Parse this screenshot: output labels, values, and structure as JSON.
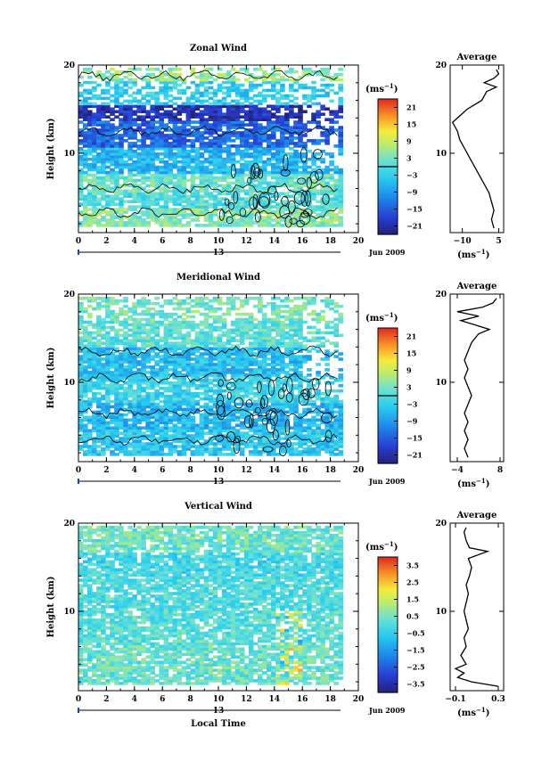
{
  "chart_data": [
    {
      "type": "heatmap",
      "title": "Zonal Wind",
      "xlabel": "",
      "ylabel": "Height (km)",
      "x_ticks": [
        "0",
        "2",
        "4",
        "6",
        "8",
        "10",
        "12",
        "14",
        "16",
        "18",
        "20"
      ],
      "y_ticks": [
        "10",
        "20"
      ],
      "xlim": [
        0,
        20
      ],
      "ylim": [
        1,
        20
      ],
      "date_marker": "13",
      "date_label": "Jun 2009",
      "colorbar": {
        "unit": "(ms",
        "unit_sup": "−1",
        "unit_close": ")",
        "ticks": [
          "21",
          "15",
          "9",
          "3",
          "−3",
          "−9",
          "−15",
          "−21"
        ],
        "range": [
          -24,
          24
        ],
        "zero_line": 0
      },
      "layers": [
        {
          "z0": 1.5,
          "z1": 3.5,
          "value": 4
        },
        {
          "z0": 3.5,
          "z1": 5.5,
          "value": 0
        },
        {
          "z0": 5.5,
          "z1": 7.5,
          "value": 2
        },
        {
          "z0": 7.5,
          "z1": 10.5,
          "value": -6
        },
        {
          "z0": 10.5,
          "z1": 13.5,
          "value": -14
        },
        {
          "z0": 13.5,
          "z1": 15.5,
          "value": -20
        },
        {
          "z0": 15.5,
          "z1": 18,
          "value": -3
        },
        {
          "z0": 18,
          "z1": 19.5,
          "value": 5
        }
      ],
      "average_profile": {
        "title": "Average",
        "x_ticks": [
          "−10",
          "5"
        ],
        "xlim": [
          -15,
          7
        ],
        "xlabel": "(ms",
        "xlabel_sup": "−1",
        "xlabel_close": ")",
        "y_ticks": [
          "10",
          "20"
        ],
        "ylim": [
          1,
          20
        ],
        "points": [
          [
            3,
            1.5
          ],
          [
            2,
            2.5
          ],
          [
            3,
            3.5
          ],
          [
            2,
            4.5
          ],
          [
            1,
            5.5
          ],
          [
            -1,
            6.5
          ],
          [
            -3,
            7.5
          ],
          [
            -5,
            8.5
          ],
          [
            -7,
            9.5
          ],
          [
            -9,
            10.5
          ],
          [
            -11,
            11.5
          ],
          [
            -12,
            12.5
          ],
          [
            -14,
            13.5
          ],
          [
            -12,
            14
          ],
          [
            -8,
            15
          ],
          [
            -2,
            16
          ],
          [
            0,
            17
          ],
          [
            4,
            17.5
          ],
          [
            -1,
            18
          ],
          [
            3,
            18.5
          ],
          [
            5,
            19
          ],
          [
            4,
            19.5
          ]
        ]
      }
    },
    {
      "type": "heatmap",
      "title": "Meridional Wind",
      "xlabel": "",
      "ylabel": "Height (km)",
      "x_ticks": [
        "0",
        "2",
        "4",
        "6",
        "8",
        "10",
        "12",
        "14",
        "16",
        "18",
        "20"
      ],
      "y_ticks": [
        "10",
        "20"
      ],
      "xlim": [
        0,
        20
      ],
      "ylim": [
        1,
        20
      ],
      "date_marker": "13",
      "date_label": "Jun 2009",
      "colorbar": {
        "unit": "(ms",
        "unit_sup": "−1",
        "unit_close": ")",
        "ticks": [
          "21",
          "15",
          "9",
          "3",
          "−3",
          "−9",
          "−15",
          "−21"
        ],
        "range": [
          -24,
          24
        ],
        "zero_line": 0
      },
      "layers": [
        {
          "z0": 1.5,
          "z1": 4.5,
          "value": -4
        },
        {
          "z0": 4.5,
          "z1": 7.5,
          "value": -6
        },
        {
          "z0": 7.5,
          "z1": 10.5,
          "value": -2
        },
        {
          "z0": 10.5,
          "z1": 14,
          "value": -5
        },
        {
          "z0": 14,
          "z1": 17,
          "value": 1
        },
        {
          "z0": 17,
          "z1": 19.5,
          "value": 3
        }
      ],
      "average_profile": {
        "title": "Average",
        "x_ticks": [
          "−4",
          "8"
        ],
        "xlim": [
          -6,
          9
        ],
        "xlabel": "(ms",
        "xlabel_sup": "−1",
        "xlabel_close": ")",
        "y_ticks": [
          "10",
          "20"
        ],
        "ylim": [
          1,
          20
        ],
        "points": [
          [
            -1,
            1.5
          ],
          [
            -2,
            2.5
          ],
          [
            -1,
            3.5
          ],
          [
            -2,
            4.5
          ],
          [
            -1,
            5.5
          ],
          [
            -2,
            6.5
          ],
          [
            -1,
            7.5
          ],
          [
            0,
            8.5
          ],
          [
            -1,
            9.5
          ],
          [
            -2,
            10.5
          ],
          [
            -1,
            11.5
          ],
          [
            -2,
            12.5
          ],
          [
            -1,
            13.5
          ],
          [
            0,
            14.5
          ],
          [
            2,
            15.5
          ],
          [
            5,
            16
          ],
          [
            1,
            16.5
          ],
          [
            -3,
            17
          ],
          [
            2,
            17.5
          ],
          [
            -4,
            18
          ],
          [
            3,
            18.5
          ],
          [
            6,
            19
          ],
          [
            7,
            19.5
          ]
        ]
      }
    },
    {
      "type": "heatmap",
      "title": "Vertical Wind",
      "xlabel": "Local Time",
      "ylabel": "Height (km)",
      "x_ticks": [
        "0",
        "2",
        "4",
        "6",
        "8",
        "10",
        "12",
        "14",
        "16",
        "18",
        "20"
      ],
      "y_ticks": [
        "10",
        "20"
      ],
      "xlim": [
        0,
        20
      ],
      "ylim": [
        1,
        20
      ],
      "date_marker": "13",
      "date_label": "Jun 2009",
      "colorbar": {
        "unit": "(ms",
        "unit_sup": "−1",
        "unit_close": ")",
        "ticks": [
          "3.5",
          "2.5",
          "1.5",
          "0.5",
          "−0.5",
          "−1.5",
          "−2.5",
          "−3.5"
        ],
        "range": [
          -4,
          4
        ],
        "zero_line": null
      },
      "layers": [
        {
          "z0": 1.5,
          "z1": 6,
          "value": 0.3
        },
        {
          "z0": 6,
          "z1": 10,
          "value": 0.1
        },
        {
          "z0": 10,
          "z1": 14,
          "value": 0.0
        },
        {
          "z0": 14,
          "z1": 16.5,
          "value": -0.2
        },
        {
          "z0": 16.5,
          "z1": 19.5,
          "value": 0.4
        }
      ],
      "average_profile": {
        "title": "Average",
        "x_ticks": [
          "−0.1",
          "0.3"
        ],
        "xlim": [
          -0.15,
          0.35
        ],
        "xlabel": "(ms",
        "xlabel_sup": "−1",
        "xlabel_close": ")",
        "y_ticks": [
          "10",
          "20"
        ],
        "ylim": [
          1,
          20
        ],
        "points": [
          [
            0.3,
            1.5
          ],
          [
            0.05,
            2
          ],
          [
            -0.08,
            2.5
          ],
          [
            -0.02,
            3
          ],
          [
            -0.1,
            3.5
          ],
          [
            0.0,
            4
          ],
          [
            -0.05,
            5
          ],
          [
            0.0,
            6
          ],
          [
            -0.02,
            7
          ],
          [
            0.02,
            8
          ],
          [
            0.0,
            9
          ],
          [
            -0.02,
            10
          ],
          [
            0.0,
            11
          ],
          [
            0.02,
            12
          ],
          [
            0.0,
            13
          ],
          [
            0.03,
            14
          ],
          [
            0.05,
            15
          ],
          [
            0.02,
            16
          ],
          [
            0.2,
            16.8
          ],
          [
            0.03,
            17.2
          ],
          [
            0.0,
            18
          ],
          [
            -0.02,
            19
          ],
          [
            0.0,
            19.5
          ]
        ]
      }
    }
  ]
}
